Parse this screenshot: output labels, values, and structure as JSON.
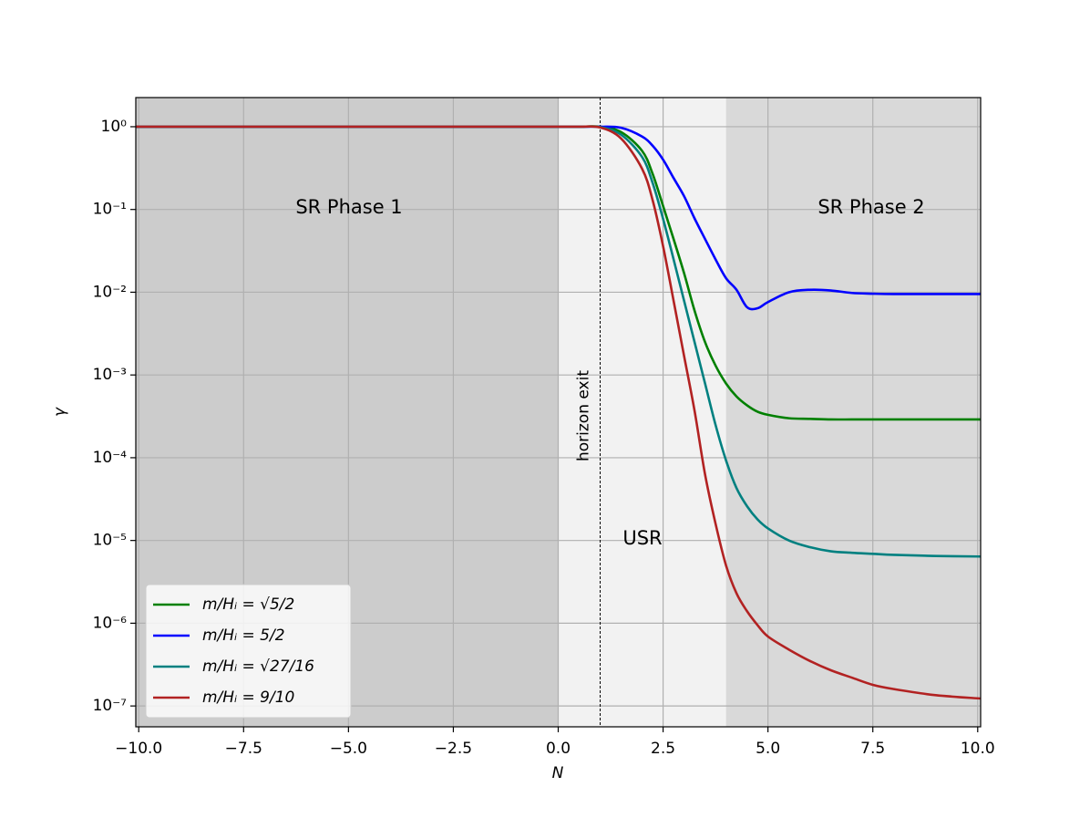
{
  "chart_data": {
    "type": "line",
    "xlabel": "N",
    "ylabel": "γ",
    "log_y": true,
    "grid": true,
    "legend_loc": "lower left",
    "xlim": [
      -10.07,
      10.07
    ],
    "ylim": [
      5.6e-08,
      2.25
    ],
    "xticks": [
      {
        "value": -10,
        "label": "−10.0"
      },
      {
        "value": -7.5,
        "label": "−7.5"
      },
      {
        "value": -5,
        "label": "−5.0"
      },
      {
        "value": -2.5,
        "label": "−2.5"
      },
      {
        "value": 0,
        "label": "0.0"
      },
      {
        "value": 2.5,
        "label": "2.5"
      },
      {
        "value": 5,
        "label": "5.0"
      },
      {
        "value": 7.5,
        "label": "7.5"
      },
      {
        "value": 10,
        "label": "10.0"
      }
    ],
    "yticks": [
      {
        "value": 1,
        "label": "10⁰"
      },
      {
        "value": 0.1,
        "label": "10⁻¹"
      },
      {
        "value": 0.01,
        "label": "10⁻²"
      },
      {
        "value": 0.001,
        "label": "10⁻³"
      },
      {
        "value": 0.0001,
        "label": "10⁻⁴"
      },
      {
        "value": 1e-05,
        "label": "10⁻⁵"
      },
      {
        "value": 1e-06,
        "label": "10⁻⁶"
      },
      {
        "value": 1e-07,
        "label": "10⁻⁷"
      }
    ],
    "regions": [
      {
        "name": "SR Phase 1",
        "start": -10.07,
        "end": 0,
        "color": "#cccccc"
      },
      {
        "name": "USR",
        "start": 0,
        "end": 4,
        "color": "#f2f2f2"
      },
      {
        "name": "SR Phase 2",
        "start": 4,
        "end": 10.07,
        "color": "#d9d9d9"
      }
    ],
    "vline": {
      "x": 1,
      "label": "horizon exit"
    },
    "x": [
      -10.07,
      -5,
      0,
      0.5,
      1,
      1.5,
      2,
      2.25,
      2.5,
      2.75,
      3,
      3.25,
      3.5,
      3.75,
      4,
      4.25,
      4.5,
      4.75,
      5,
      5.5,
      6,
      6.5,
      7,
      7.5,
      8,
      9,
      10.07
    ],
    "series": [
      {
        "name": "m/Hᵢ = √5/2",
        "color": "#008000",
        "values": [
          1,
          1,
          1,
          1,
          1,
          0.86,
          0.51,
          0.27,
          0.11,
          0.044,
          0.017,
          0.006,
          0.0025,
          0.0013,
          0.00079,
          0.00055,
          0.00043,
          0.00036,
          0.00033,
          0.0003,
          0.000295,
          0.00029,
          0.00029,
          0.00029,
          0.00029,
          0.00029,
          0.00029
        ]
      },
      {
        "name": "m/Hᵢ = 5/2",
        "color": "#0000ff",
        "values": [
          1,
          1,
          1,
          1,
          1,
          0.97,
          0.76,
          0.59,
          0.4,
          0.24,
          0.145,
          0.078,
          0.044,
          0.025,
          0.0148,
          0.0107,
          0.0066,
          0.0064,
          0.0076,
          0.01,
          0.0107,
          0.0105,
          0.0098,
          0.0096,
          0.0095,
          0.0095,
          0.0095
        ]
      },
      {
        "name": "m/Hᵢ = √27/16",
        "color": "#008080",
        "values": [
          1,
          1,
          1,
          1,
          0.99,
          0.8,
          0.43,
          0.21,
          0.077,
          0.025,
          0.0079,
          0.0025,
          0.00079,
          0.00025,
          9.3e-05,
          4.3e-05,
          2.6e-05,
          1.8e-05,
          1.4e-05,
          1e-05,
          8.3e-06,
          7.4e-06,
          7.1e-06,
          6.9e-06,
          6.7e-06,
          6.5e-06,
          6.4e-06
        ]
      },
      {
        "name": "m/Hᵢ = 9/10",
        "color": "#b22222",
        "values": [
          1,
          1,
          1,
          1,
          0.98,
          0.72,
          0.31,
          0.13,
          0.036,
          0.0079,
          0.0017,
          0.00037,
          6.3e-05,
          1.6e-05,
          5e-06,
          2.3e-06,
          1.4e-06,
          9.5e-07,
          6.9e-07,
          4.8e-07,
          3.5e-07,
          2.7e-07,
          2.2e-07,
          1.8e-07,
          1.6e-07,
          1.35e-07,
          1.23e-07
        ]
      }
    ]
  }
}
